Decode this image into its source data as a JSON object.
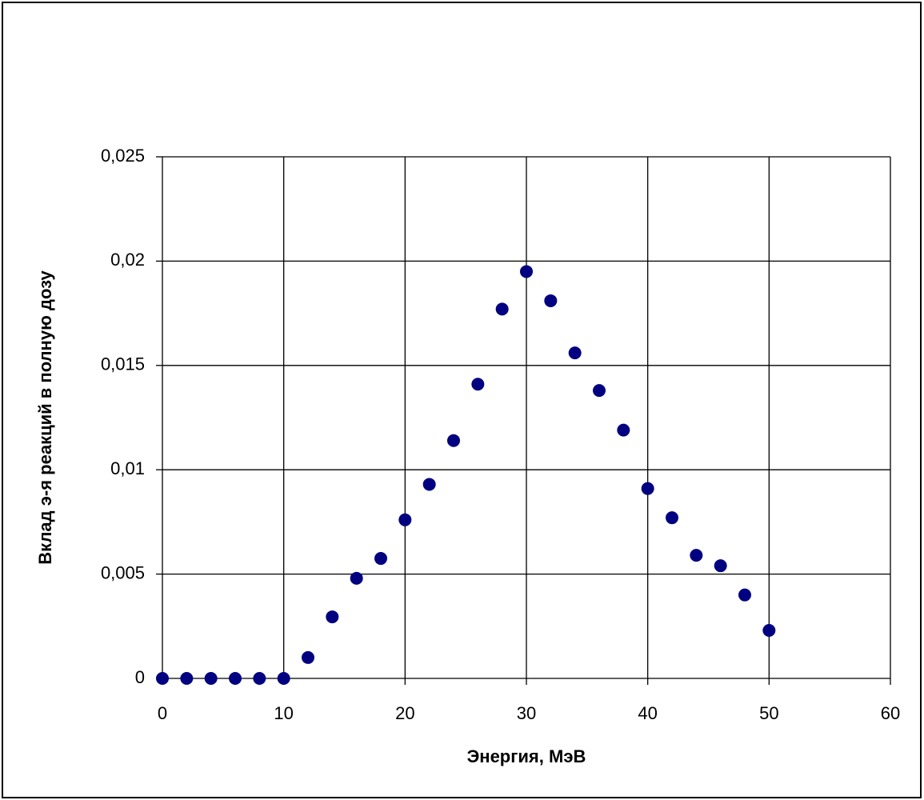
{
  "chart_data": {
    "type": "scatter",
    "xlabel": "Энергия, МэВ",
    "ylabel": "Вклад э-я реакций в полную дозу",
    "x": [
      0,
      2,
      4,
      6,
      8,
      10,
      12,
      14,
      16,
      18,
      20,
      22,
      24,
      26,
      28,
      30,
      32,
      34,
      36,
      38,
      40,
      42,
      44,
      46,
      48,
      50
    ],
    "series": [
      {
        "color": "#000080",
        "values": [
          0,
          0,
          0,
          0,
          0,
          0,
          0.001,
          0.00295,
          0.0048,
          0.00575,
          0.0076,
          0.0093,
          0.0114,
          0.0141,
          0.0177,
          0.0195,
          0.0181,
          0.0156,
          0.0138,
          0.0119,
          0.0091,
          0.0077,
          0.0059,
          0.0054,
          0.004,
          0.0023
        ]
      }
    ],
    "xlim": [
      0,
      60
    ],
    "xticks": [
      0,
      10,
      20,
      30,
      40,
      50,
      60
    ],
    "ylim": [
      0,
      0.025
    ],
    "yticks": [
      0,
      {
        "value": 0.005,
        "label": "0,005"
      },
      {
        "value": 0.01,
        "label": "0,01"
      },
      {
        "value": 0.015,
        "label": "0,015"
      },
      {
        "value": 0.02,
        "label": "0,02"
      },
      {
        "value": 0.025,
        "label": "0,025"
      }
    ],
    "grid": true
  }
}
